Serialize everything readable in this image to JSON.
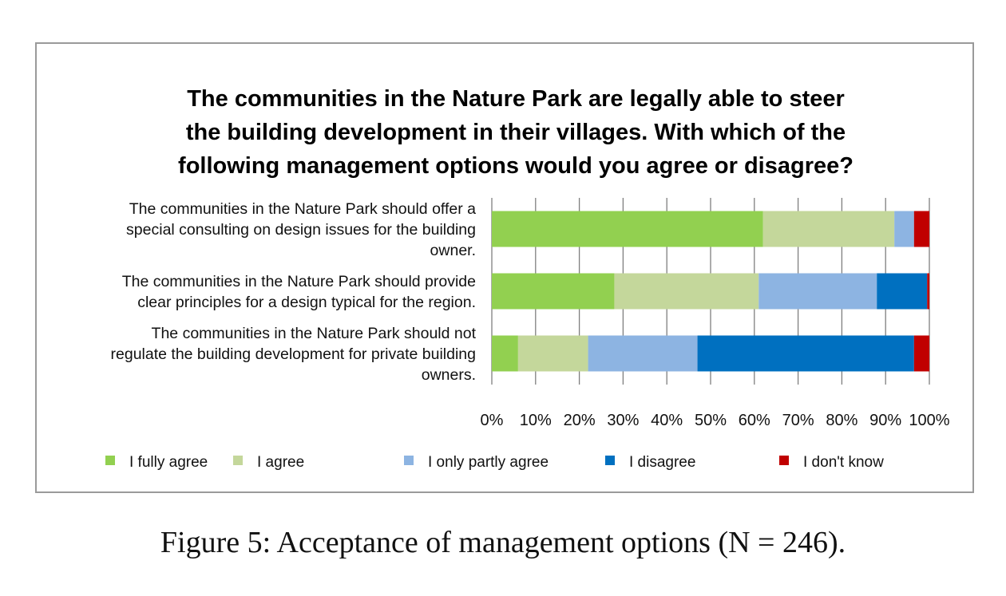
{
  "chart_data": {
    "type": "bar",
    "orientation": "horizontal",
    "stacked": true,
    "title_lines": [
      "The communities in the Nature Park are legally able to steer",
      "the building development in their villages. With which of the",
      "following management options would you agree or disagree?"
    ],
    "categories": [
      [
        "The communities in the Nature Park should offer a",
        "special consulting on design issues for the building",
        "owner."
      ],
      [
        "The communities in the Nature Park should provide",
        "clear principles for a design typical for the region."
      ],
      [
        "The communities in the Nature Park should not",
        "regulate the building development for private building",
        "owners."
      ]
    ],
    "series": [
      {
        "name": "I fully agree",
        "color": "#92d050",
        "values": [
          62,
          28,
          6
        ]
      },
      {
        "name": "I agree",
        "color": "#c4d79b",
        "values": [
          30,
          33,
          16
        ]
      },
      {
        "name": "I only partly agree",
        "color": "#8db4e2",
        "values": [
          4.5,
          27,
          25
        ]
      },
      {
        "name": "I disagree",
        "color": "#0070c0",
        "values": [
          0,
          11.5,
          49.5
        ]
      },
      {
        "name": "I don't know",
        "color": "#c00000",
        "values": [
          3.5,
          0.5,
          3.5
        ]
      }
    ],
    "xlim": [
      0,
      100
    ],
    "x_ticks": [
      "0%",
      "10%",
      "20%",
      "30%",
      "40%",
      "50%",
      "60%",
      "70%",
      "80%",
      "90%",
      "100%"
    ],
    "grid": "vertical",
    "legend_position": "bottom"
  },
  "caption": "Figure 5:  Acceptance of management options (N = 246)."
}
